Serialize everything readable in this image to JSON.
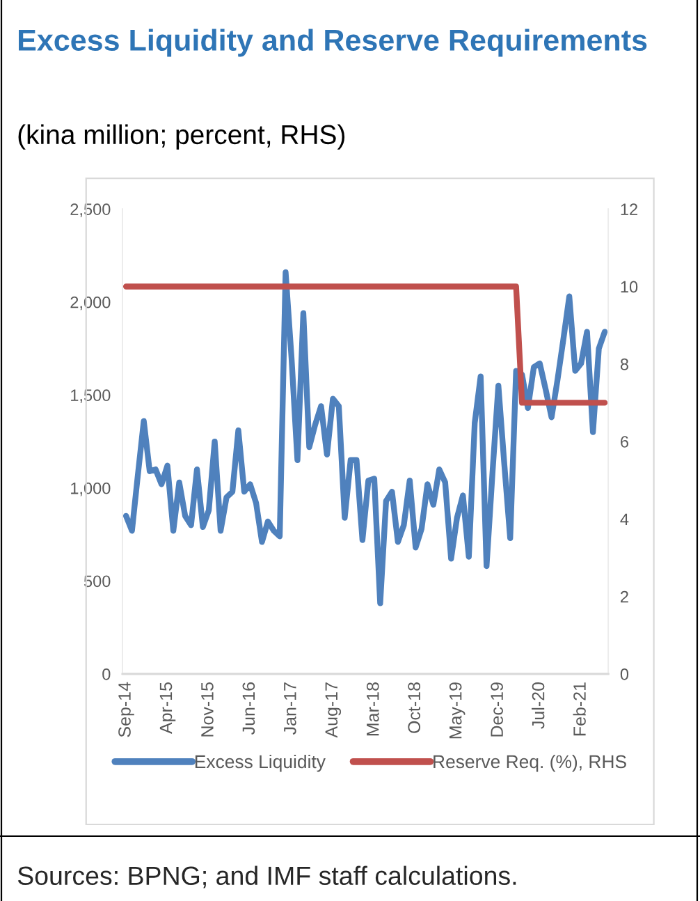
{
  "chart_data": {
    "type": "line",
    "title": "Excess Liquidity and Reserve Requirements",
    "subtitle": "(kina million; percent, RHS)",
    "categories": [
      "Sep-14",
      null,
      null,
      null,
      null,
      null,
      null,
      "Apr-15",
      null,
      null,
      null,
      null,
      null,
      null,
      "Nov-15",
      null,
      null,
      null,
      null,
      null,
      null,
      "Jun-16",
      null,
      null,
      null,
      null,
      null,
      null,
      "Jan-17",
      null,
      null,
      null,
      null,
      null,
      null,
      "Aug-17",
      null,
      null,
      null,
      null,
      null,
      null,
      "Mar-18",
      null,
      null,
      null,
      null,
      null,
      null,
      "Oct-18",
      null,
      null,
      null,
      null,
      null,
      null,
      "May-19",
      null,
      null,
      null,
      null,
      null,
      null,
      "Dec-19",
      null,
      null,
      null,
      null,
      null,
      null,
      "Jul-20",
      null,
      null,
      null,
      null,
      null,
      null,
      "Feb-21",
      null,
      null,
      null,
      null
    ],
    "series": [
      {
        "name": "Excess Liquidity",
        "color": "#4f81bd",
        "values": [
          850,
          770,
          1070,
          1360,
          1090,
          1100,
          1020,
          1120,
          770,
          1030,
          850,
          800,
          1100,
          790,
          880,
          1250,
          770,
          950,
          980,
          1310,
          980,
          1020,
          920,
          710,
          820,
          770,
          740,
          2160,
          1700,
          1150,
          1940,
          1220,
          1340,
          1440,
          1180,
          1480,
          1440,
          840,
          1150,
          1150,
          720,
          1040,
          1050,
          380,
          930,
          980,
          710,
          800,
          1040,
          680,
          780,
          1020,
          910,
          1100,
          1030,
          620,
          840,
          960,
          630,
          1350,
          1600,
          580,
          1080,
          1550,
          1130,
          730,
          1630,
          1610,
          1430,
          1650,
          1670,
          1530,
          1380,
          1580,
          1800,
          2030,
          1630,
          1670,
          1840,
          1300,
          1750,
          1840
        ]
      },
      {
        "name": "Reserve Req. (%), RHS",
        "color": "#c0504d",
        "axis": "y2",
        "values": [
          10,
          10,
          10,
          10,
          10,
          10,
          10,
          10,
          10,
          10,
          10,
          10,
          10,
          10,
          10,
          10,
          10,
          10,
          10,
          10,
          10,
          10,
          10,
          10,
          10,
          10,
          10,
          10,
          10,
          10,
          10,
          10,
          10,
          10,
          10,
          10,
          10,
          10,
          10,
          10,
          10,
          10,
          10,
          10,
          10,
          10,
          10,
          10,
          10,
          10,
          10,
          10,
          10,
          10,
          10,
          10,
          10,
          10,
          10,
          10,
          10,
          10,
          10,
          10,
          10,
          10,
          10,
          7,
          7,
          7,
          7,
          7,
          7,
          7,
          7,
          7,
          7,
          7,
          7,
          7,
          7,
          7
        ]
      }
    ],
    "ylim": [
      0,
      2500
    ],
    "yticks": [
      0,
      500,
      {
        "value": 1000,
        "label": "1,000"
      },
      {
        "value": 1500,
        "label": "1,500"
      },
      {
        "value": 2000,
        "label": "2,000"
      },
      {
        "value": 2500,
        "label": "2,500"
      }
    ],
    "y2lim": [
      0,
      12
    ],
    "y2ticks": [
      0,
      2,
      4,
      6,
      8,
      10,
      12
    ],
    "legend": "bottom",
    "grid": false,
    "annotations": [
      "Sources: BPNG; and IMF staff calculations."
    ]
  }
}
